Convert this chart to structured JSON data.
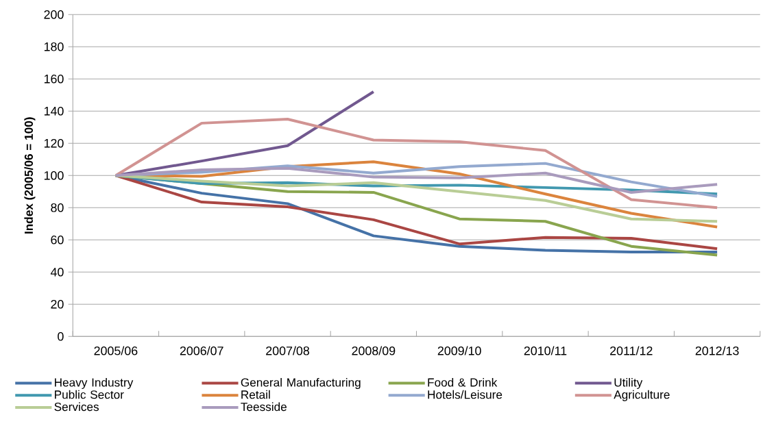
{
  "chart_data": {
    "type": "line",
    "ylabel": "**Index (2005/06 = 100)**",
    "categories": [
      "2005/06",
      "2006/07",
      "2007/08",
      "2008/09",
      "2009/10",
      "2010/11",
      "2011/12",
      "2012/13"
    ],
    "series": [
      {
        "name": "Heavy Industry",
        "color": "#4572a7",
        "values": [
          100,
          89,
          82.5,
          62.5,
          56,
          53.5,
          52.5,
          52.5
        ]
      },
      {
        "name": "General Manufacturing",
        "color": "#aa4643",
        "values": [
          100,
          83.5,
          80.5,
          72.5,
          57.5,
          61.5,
          61,
          54.5
        ]
      },
      {
        "name": "Food & Drink",
        "color": "#89a54e",
        "values": [
          100,
          95,
          90,
          89.5,
          73,
          71.5,
          56,
          50.5
        ]
      },
      {
        "name": "Utility",
        "color": "#71588f",
        "values": [
          100,
          109,
          118.5,
          152,
          null,
          null,
          null,
          null
        ]
      },
      {
        "name": "Public Sector",
        "color": "#4198af",
        "values": [
          100,
          95,
          95.5,
          93.5,
          94,
          92.5,
          91,
          88.5
        ]
      },
      {
        "name": "Retail",
        "color": "#db843d",
        "values": [
          100,
          99.5,
          105.5,
          108.5,
          101,
          88.5,
          76.5,
          68
        ]
      },
      {
        "name": "Hotels/Leisure",
        "color": "#93a9cf",
        "values": [
          100,
          102,
          106,
          101.5,
          105.5,
          107.5,
          96,
          87
        ]
      },
      {
        "name": "Agriculture",
        "color": "#d19392",
        "values": [
          100,
          132.5,
          135,
          122,
          121,
          115.5,
          85,
          80
        ]
      },
      {
        "name": "Services",
        "color": "#b9cd96",
        "values": [
          100,
          96.5,
          93.5,
          95.5,
          90,
          84.5,
          73,
          71.5
        ]
      },
      {
        "name": "Teesside",
        "color": "#a99bbd",
        "values": [
          100,
          103.5,
          104.5,
          99,
          98.5,
          101.5,
          89.5,
          94.5
        ]
      }
    ],
    "ylim": [
      0,
      200
    ],
    "yticks": [
      0,
      20,
      40,
      60,
      80,
      100,
      120,
      140,
      160,
      180,
      200
    ],
    "grid": "y",
    "legend": "bottom",
    "marker": "none",
    "line_style": "solid"
  }
}
